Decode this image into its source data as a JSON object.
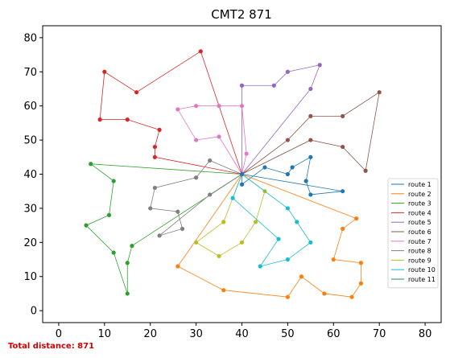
{
  "chart_data": {
    "type": "line",
    "title": "CMT2 871",
    "xlabel": "",
    "ylabel": "",
    "xlim": [
      -3.5,
      83.5
    ],
    "ylim": [
      -3.5,
      83.5
    ],
    "xticks": [
      0,
      10,
      20,
      30,
      40,
      50,
      60,
      70,
      80
    ],
    "yticks": [
      0,
      10,
      20,
      30,
      40,
      50,
      60,
      70,
      80
    ],
    "grid": false,
    "legend_position": "center-right",
    "depot": [
      40,
      40
    ],
    "series": [
      {
        "name": "route 1",
        "color": "#1f77b4",
        "points": [
          [
            40,
            40
          ],
          [
            40,
            37
          ],
          [
            45,
            42
          ],
          [
            50,
            40
          ],
          [
            51,
            42
          ],
          [
            55,
            45
          ],
          [
            54,
            38
          ],
          [
            55,
            34
          ],
          [
            62,
            35
          ],
          [
            40,
            40
          ]
        ]
      },
      {
        "name": "route 2",
        "color": "#ff7f0e",
        "points": [
          [
            40,
            40
          ],
          [
            65,
            27
          ],
          [
            62,
            24
          ],
          [
            60,
            15
          ],
          [
            66,
            14
          ],
          [
            66,
            8
          ],
          [
            64,
            4
          ],
          [
            58,
            5
          ],
          [
            53,
            10
          ],
          [
            50,
            4
          ],
          [
            36,
            6
          ],
          [
            26,
            13
          ],
          [
            40,
            40
          ]
        ]
      },
      {
        "name": "route 3",
        "color": "#2ca02c",
        "points": [
          [
            40,
            40
          ],
          [
            16,
            19
          ],
          [
            15,
            14
          ],
          [
            15,
            5
          ],
          [
            12,
            17
          ],
          [
            6,
            25
          ],
          [
            11,
            28
          ],
          [
            12,
            38
          ],
          [
            7,
            43
          ],
          [
            40,
            40
          ]
        ]
      },
      {
        "name": "route 4",
        "color": "#d62728",
        "points": [
          [
            40,
            40
          ],
          [
            21,
            45
          ],
          [
            21,
            48
          ],
          [
            22,
            53
          ],
          [
            15,
            56
          ],
          [
            9,
            56
          ],
          [
            10,
            70
          ],
          [
            17,
            64
          ],
          [
            31,
            76
          ],
          [
            40,
            40
          ]
        ]
      },
      {
        "name": "route 5",
        "color": "#9467bd",
        "points": [
          [
            40,
            40
          ],
          [
            55,
            65
          ],
          [
            57,
            72
          ],
          [
            50,
            70
          ],
          [
            47,
            66
          ],
          [
            40,
            66
          ],
          [
            40,
            40
          ]
        ]
      },
      {
        "name": "route 6",
        "color": "#8c564b",
        "points": [
          [
            40,
            40
          ],
          [
            55,
            50
          ],
          [
            62,
            48
          ],
          [
            67,
            41
          ],
          [
            70,
            64
          ],
          [
            62,
            57
          ],
          [
            55,
            57
          ],
          [
            50,
            50
          ],
          [
            40,
            40
          ]
        ]
      },
      {
        "name": "route 7",
        "color": "#e377c2",
        "points": [
          [
            40,
            40
          ],
          [
            41,
            46
          ],
          [
            40,
            60
          ],
          [
            35,
            60
          ],
          [
            30,
            60
          ],
          [
            26,
            59
          ],
          [
            30,
            50
          ],
          [
            35,
            51
          ],
          [
            40,
            40
          ]
        ]
      },
      {
        "name": "route 8",
        "color": "#7f7f7f",
        "points": [
          [
            40,
            40
          ],
          [
            33,
            44
          ],
          [
            30,
            39
          ],
          [
            21,
            36
          ],
          [
            20,
            30
          ],
          [
            26,
            29
          ],
          [
            27,
            24
          ],
          [
            22,
            22
          ],
          [
            33,
            34
          ],
          [
            40,
            40
          ]
        ]
      },
      {
        "name": "route 9",
        "color": "#bcbd22",
        "points": [
          [
            40,
            40
          ],
          [
            45,
            35
          ],
          [
            43,
            26
          ],
          [
            40,
            20
          ],
          [
            35,
            16
          ],
          [
            30,
            20
          ],
          [
            36,
            26
          ],
          [
            40,
            40
          ]
        ]
      },
      {
        "name": "route 10",
        "color": "#17becf",
        "points": [
          [
            40,
            40
          ],
          [
            50,
            30
          ],
          [
            52,
            26
          ],
          [
            55,
            20
          ],
          [
            50,
            15
          ],
          [
            44,
            13
          ],
          [
            48,
            21
          ],
          [
            38,
            33
          ],
          [
            40,
            40
          ]
        ]
      },
      {
        "name": "route 11",
        "color": "#2e8b57",
        "points": [
          [
            40,
            40
          ],
          [
            40,
            40
          ]
        ]
      }
    ],
    "footer_text": "Total distance: 871"
  }
}
